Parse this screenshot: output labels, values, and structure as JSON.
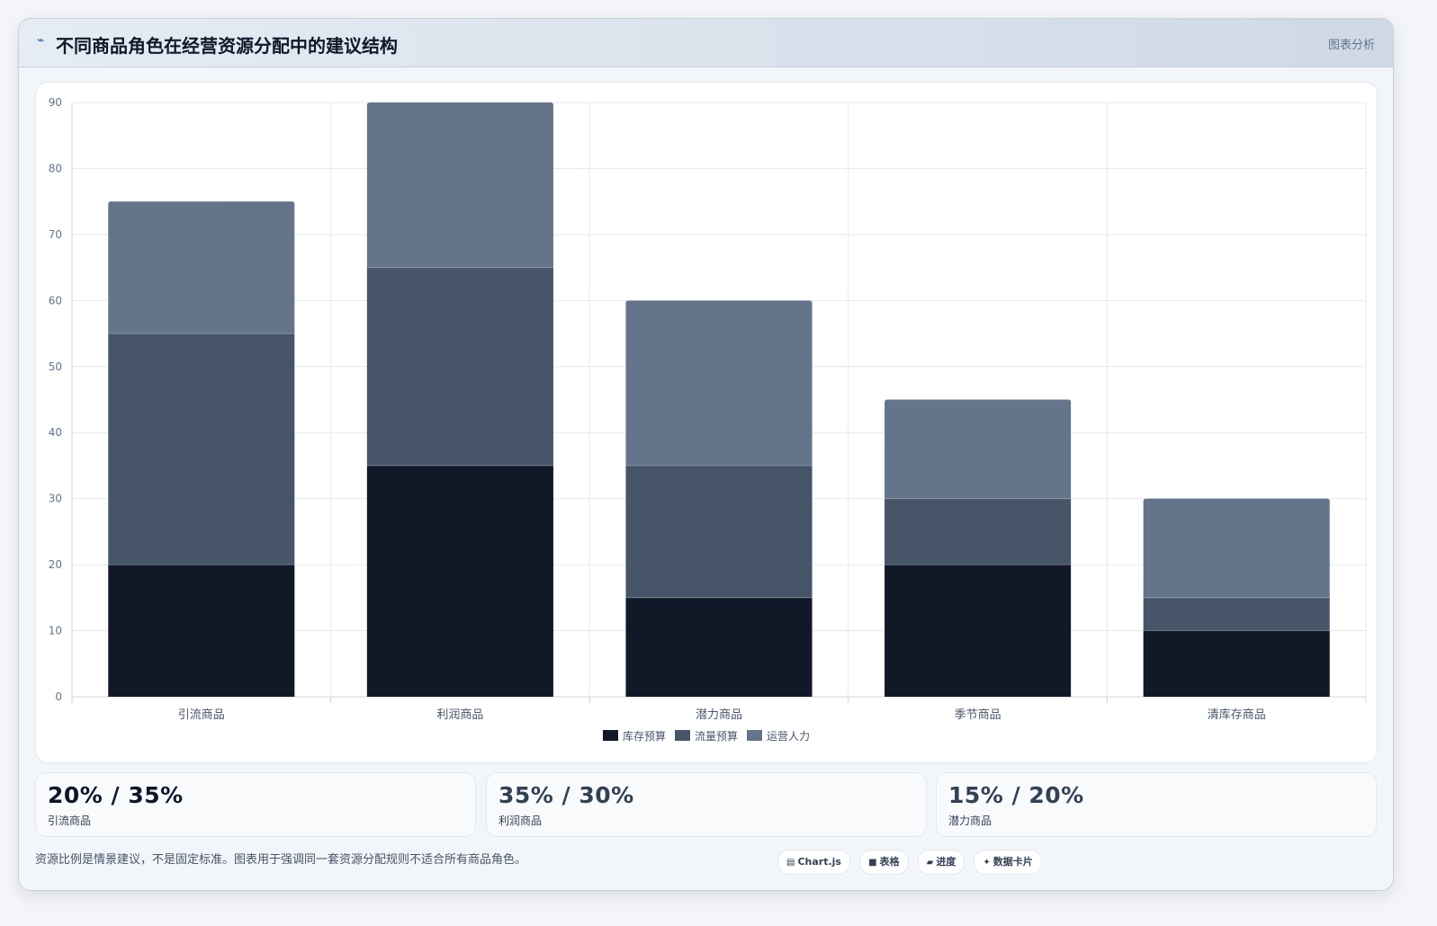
{
  "header": {
    "icon": "chart-line-icon",
    "title": "不同商品角色在经营资源分配中的建议结构",
    "tag": "图表分析"
  },
  "chart_data": {
    "type": "bar",
    "stacked": true,
    "categories": [
      "引流商品",
      "利润商品",
      "潜力商品",
      "季节商品",
      "清库存商品"
    ],
    "series": [
      {
        "name": "库存预算",
        "color": "#111827",
        "values": [
          20,
          35,
          15,
          20,
          10
        ]
      },
      {
        "name": "流量预算",
        "color": "#475569",
        "values": [
          35,
          30,
          20,
          10,
          5
        ]
      },
      {
        "name": "运营人力",
        "color": "#64748b",
        "values": [
          20,
          25,
          25,
          15,
          15
        ]
      }
    ],
    "ylim": [
      0,
      90
    ],
    "yticks": [
      0,
      10,
      20,
      30,
      40,
      50,
      60,
      70,
      80,
      90
    ],
    "grid": true,
    "legend": "bottom"
  },
  "stats": [
    {
      "value": "20% / 35%",
      "label": "引流商品"
    },
    {
      "value": "35% / 30%",
      "label": "利润商品"
    },
    {
      "value": "15% / 20%",
      "label": "潜力商品"
    }
  ],
  "footer": {
    "note": "资源比例是情景建议，不是固定标准。图表用于强调同一套资源分配规则不适合所有商品角色。",
    "chips": [
      {
        "icon": "chart-icon",
        "glyph": "▤",
        "label": "Chart.js"
      },
      {
        "icon": "table-icon",
        "glyph": "■",
        "label": "表格"
      },
      {
        "icon": "progress-icon",
        "glyph": "▰",
        "label": "进度"
      },
      {
        "icon": "sparkle-icon",
        "glyph": "✦",
        "label": "数据卡片"
      }
    ]
  }
}
